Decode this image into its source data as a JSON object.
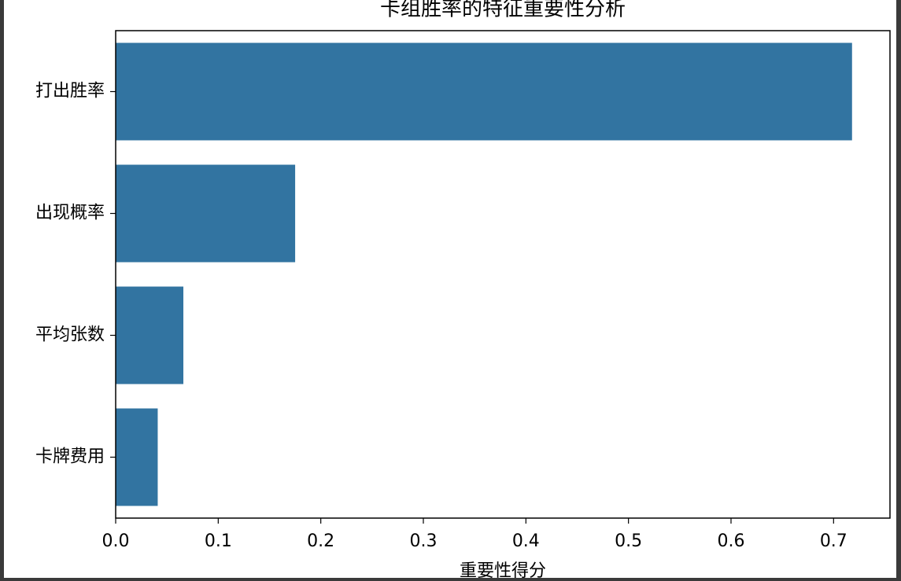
{
  "chart_data": {
    "type": "barh",
    "title": "卡组胜率的特征重要性分析",
    "xlabel": "重要性得分",
    "categories": [
      "打出胜率",
      "出现概率",
      "平均张数",
      "卡牌费用"
    ],
    "values": [
      0.718,
      0.175,
      0.066,
      0.041
    ],
    "color": "#3274a1",
    "xlim": [
      0,
      0.755
    ],
    "xticks": [
      {
        "value": 0,
        "label": "0.0"
      },
      0.1,
      0.2,
      0.3,
      0.4,
      0.5,
      0.6,
      0.7
    ]
  }
}
